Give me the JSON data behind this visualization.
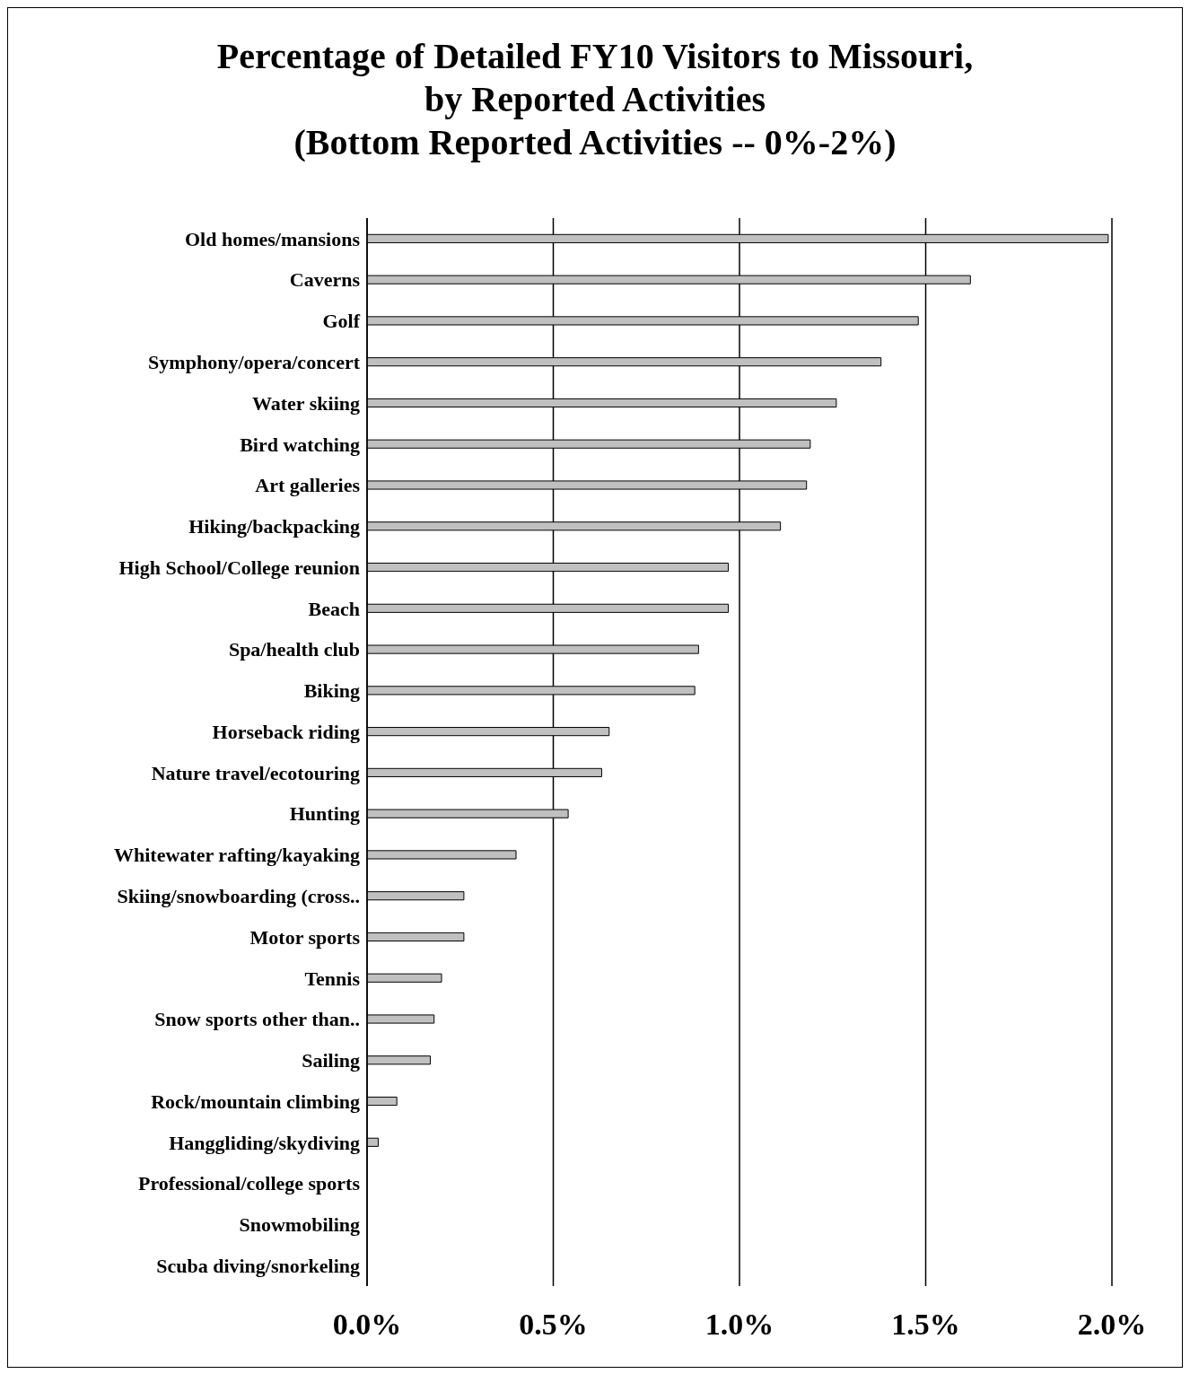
{
  "chart_data": {
    "type": "bar",
    "orientation": "horizontal",
    "title": "Percentage of Detailed FY10 Visitors to Missouri,\nby Reported Activities\n(Bottom Reported Activities -- 0%-2%)",
    "categories": [
      "Old homes/mansions",
      "Caverns",
      "Golf",
      "Symphony/opera/concert",
      "Water skiing",
      "Bird watching",
      "Art galleries",
      "Hiking/backpacking",
      "High School/College reunion",
      "Beach",
      "Spa/health club",
      "Biking",
      "Horseback riding",
      "Nature travel/ecotouring",
      "Hunting",
      "Whitewater rafting/kayaking",
      "Skiing/snowboarding (cross..",
      "Motor sports",
      "Tennis",
      "Snow sports other than..",
      "Sailing",
      "Rock/mountain climbing",
      "Hanggliding/skydiving",
      "Professional/college sports",
      "Snowmobiling",
      "Scuba diving/snorkeling"
    ],
    "values": [
      1.99,
      1.62,
      1.48,
      1.38,
      1.26,
      1.19,
      1.18,
      1.11,
      0.97,
      0.97,
      0.89,
      0.88,
      0.65,
      0.63,
      0.54,
      0.4,
      0.26,
      0.26,
      0.2,
      0.18,
      0.17,
      0.08,
      0.03,
      0,
      0,
      0
    ],
    "color": "#c0c0c0",
    "xlim": [
      0,
      2
    ],
    "xticks": [
      {
        "value": 0,
        "label": "0.0%"
      },
      {
        "value": 0.5,
        "label": "0.5%"
      },
      {
        "value": 1,
        "label": "1.0%"
      },
      {
        "value": 1.5,
        "label": "1.5%"
      },
      {
        "value": 2,
        "label": "2.0%"
      }
    ],
    "grid": "x"
  }
}
